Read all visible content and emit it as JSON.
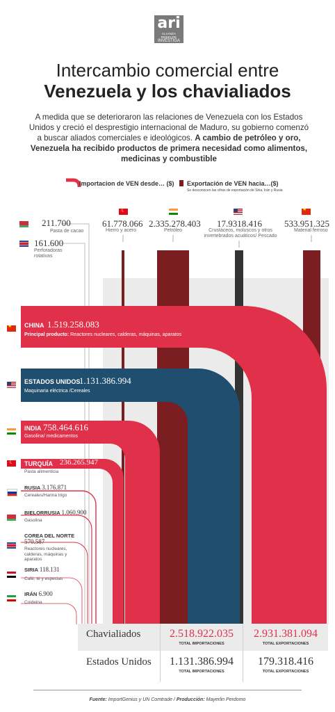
{
  "logo": {
    "text": "ari",
    "line1": "ALIANZA REBELDE",
    "line2": "INVESTIGA"
  },
  "title": {
    "line1": "Intercambio comercial entre",
    "line2": "Venezuela y los chavialiados"
  },
  "intro": {
    "normal": "A medida que se deterioraron las relaciones de Venezuela con los Estados Unidos y creció el desprestigio internacional de Maduro, su gobierno comenzó a buscar aliados comerciales e ideológicos.",
    "bold": "A cambio de petróleo y oro, Venezuela ha recibido productos de primera necesidad como alimentos, medicinas y combustible"
  },
  "legend": {
    "import_label": "Importacion de VEN desde… ($)",
    "export_label": "Exportación de VEN hacia…($)",
    "export_note": "Se desconocen las cifras de exportación de Siria, Irán y Rusia"
  },
  "colors": {
    "red": "#e0304a",
    "navy": "#1f4e6e",
    "darkred": "#7a1e22",
    "darkgray": "#333333",
    "panel": "#ebebeb"
  },
  "chart_data": {
    "type": "sankey",
    "imports": [
      {
        "country": "CHINA",
        "value": "1.519.258.083",
        "product_label": "Principal producto:",
        "product": "Reactores nucleares, calderas, máquinas, aparatos",
        "color": "#e0304a",
        "flag": "china-flag"
      },
      {
        "country": "ESTADOS UNIDOS",
        "value": "1.131.386.994",
        "product": "Maquinaria eléctrica /Cereales",
        "color": "#1f4e6e",
        "flag": "usa-flag"
      },
      {
        "country": "INDIA",
        "value": "758.464.616",
        "product": "Gasolina/ medicamentos",
        "color": "#e0304a",
        "flag": "india-flag"
      },
      {
        "country": "TURQUÍA",
        "value": "236.265.947",
        "product": "Pasta alimenticia",
        "color": "#e0304a",
        "flag": "turkey-flag"
      },
      {
        "country": "RUSIA",
        "value": "3.176.871",
        "product": "Cereales/Harina trigo",
        "flag": "russia-flag"
      },
      {
        "country": "BIELORRUSIA",
        "value": "1.060.900",
        "product": "Gasolina",
        "flag": "belarus-flag"
      },
      {
        "country": "COREA DEL NORTE",
        "value": "570.587",
        "product": "Reactores nucleares, calderas, máquinas y aparatos",
        "flag": "north-korea-flag"
      },
      {
        "country": "SIRIA",
        "value": "118.131",
        "product": "Café, té y especias",
        "flag": "syria-flag"
      },
      {
        "country": "IRÁN",
        "value": "6.900",
        "product": "Coidelna",
        "flag": "iran-flag"
      }
    ],
    "exports_top": [
      {
        "value": "61.778.066",
        "product": "Hierro y acero",
        "flag": "turkey-flag"
      },
      {
        "value": "2.335.278.403",
        "product": "Petróleo",
        "flag": "india-flag"
      },
      {
        "value": "17.9318.416",
        "product": "Crustáceos, moluscos y otros invertebrados acuáticos/ Pescado",
        "flag": "usa-flag"
      },
      {
        "value": "533.951.325",
        "product": "Material ferroso",
        "flag": "china-flag"
      }
    ],
    "small_exports": [
      {
        "value": "211.700",
        "product": "Pasta de cacao",
        "flag": "belarus-flag"
      },
      {
        "value": "161.600",
        "product": "Perforadoras rotativas",
        "flag": "north-korea-flag"
      }
    ]
  },
  "totals": {
    "rows": [
      {
        "label": "Chavialiados",
        "imports": "2.518.922.035",
        "exports": "2.931.381.094"
      },
      {
        "label": "Estados Unidos",
        "imports": "1.131.386.994",
        "exports": "179.318.416"
      }
    ],
    "imports_caption": "TOTAL IMPORTACIONES",
    "exports_caption": "TOTAL EXPORTACIONES"
  },
  "footer": {
    "fuente_label": "Fuente:",
    "fuente": "ImportGenius y UN Comtrade",
    "produccion_label": "Producción:",
    "produccion": "Mayerlin Perdomo"
  }
}
